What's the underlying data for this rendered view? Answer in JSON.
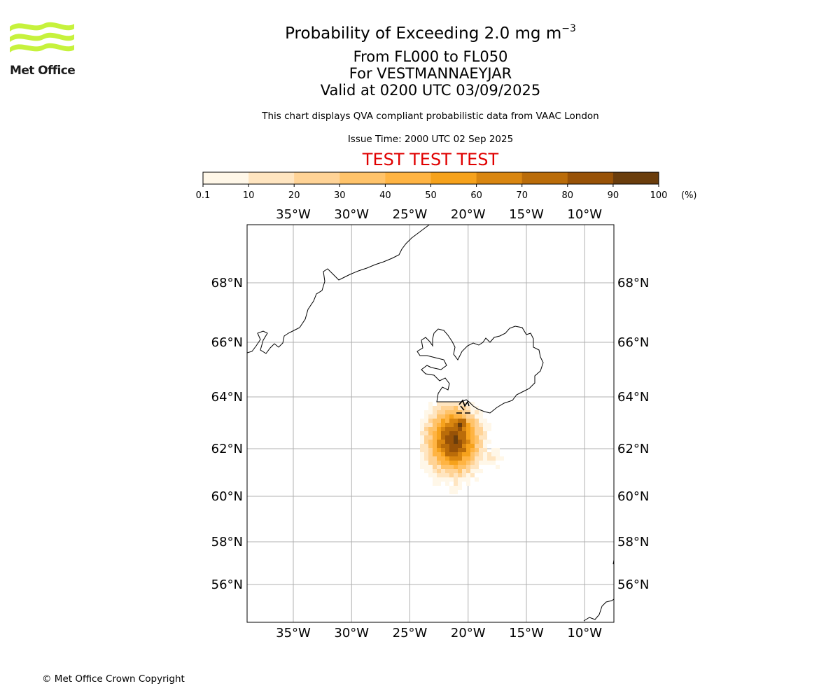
{
  "logo": {
    "label": "Met Office"
  },
  "header": {
    "title_prefix": "Probability of Exceeding 2.0 mg m",
    "title_exponent": "−3",
    "line2": "From FL000 to FL050",
    "line3": "For VESTMANNAEYJAR",
    "line4": "Valid at 0200 UTC 03/09/2025",
    "description": "This chart displays QVA compliant probabilistic data from VAAC London",
    "issue_time": "Issue Time: 2000 UTC 02 Sep 2025",
    "test_banner": "TEST TEST TEST"
  },
  "colorbar": {
    "bounds": [
      "0.1",
      "10",
      "20",
      "30",
      "40",
      "50",
      "60",
      "70",
      "80",
      "90",
      "100"
    ],
    "colors": [
      "#fff7e8",
      "#ffe5c0",
      "#ffd396",
      "#ffc36a",
      "#ffb443",
      "#f6a21c",
      "#d98610",
      "#ba6c09",
      "#985207",
      "#6a3d0c"
    ],
    "unit": "(%)"
  },
  "map": {
    "lon_ticks": [
      "35°W",
      "30°W",
      "25°W",
      "20°W",
      "15°W",
      "10°W"
    ],
    "lat_ticks": [
      "68°N",
      "66°N",
      "64°N",
      "62°N",
      "60°N",
      "58°N",
      "56°N"
    ],
    "lon_values": [
      -35,
      -30,
      -25,
      -20,
      -15,
      -10
    ],
    "lat_values": [
      68,
      66,
      64,
      62,
      60,
      58,
      56
    ],
    "gridlines": true,
    "volcano": "VESTMANNAEYJAR"
  },
  "footer": {
    "copyright": "© Met Office Crown Copyright"
  }
}
